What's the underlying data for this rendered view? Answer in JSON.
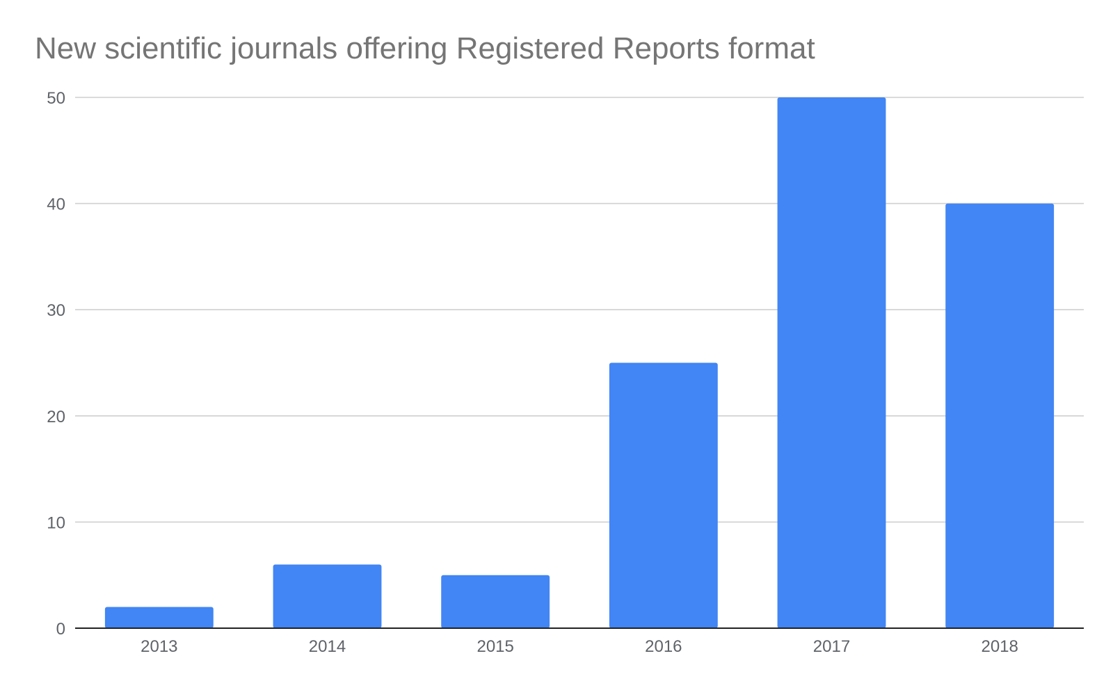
{
  "chart_data": {
    "type": "bar",
    "title": "New scientific journals offering Registered Reports format",
    "xlabel": "",
    "ylabel": "",
    "categories": [
      "2013",
      "2014",
      "2015",
      "2016",
      "2017",
      "2018"
    ],
    "values": [
      2,
      6,
      5,
      25,
      50,
      40
    ],
    "ylim": [
      0,
      50
    ],
    "yticks": [
      0,
      10,
      20,
      30,
      40,
      50
    ],
    "ytick_labels": [
      "0",
      "10",
      "20",
      "30",
      "40",
      "50"
    ],
    "grid": true,
    "legend": "none",
    "colors": {
      "bar": "#4285f4",
      "grid": "#cfcfcf",
      "baseline": "#222222",
      "title": "#757575",
      "tick_label": "#5f6368"
    }
  }
}
